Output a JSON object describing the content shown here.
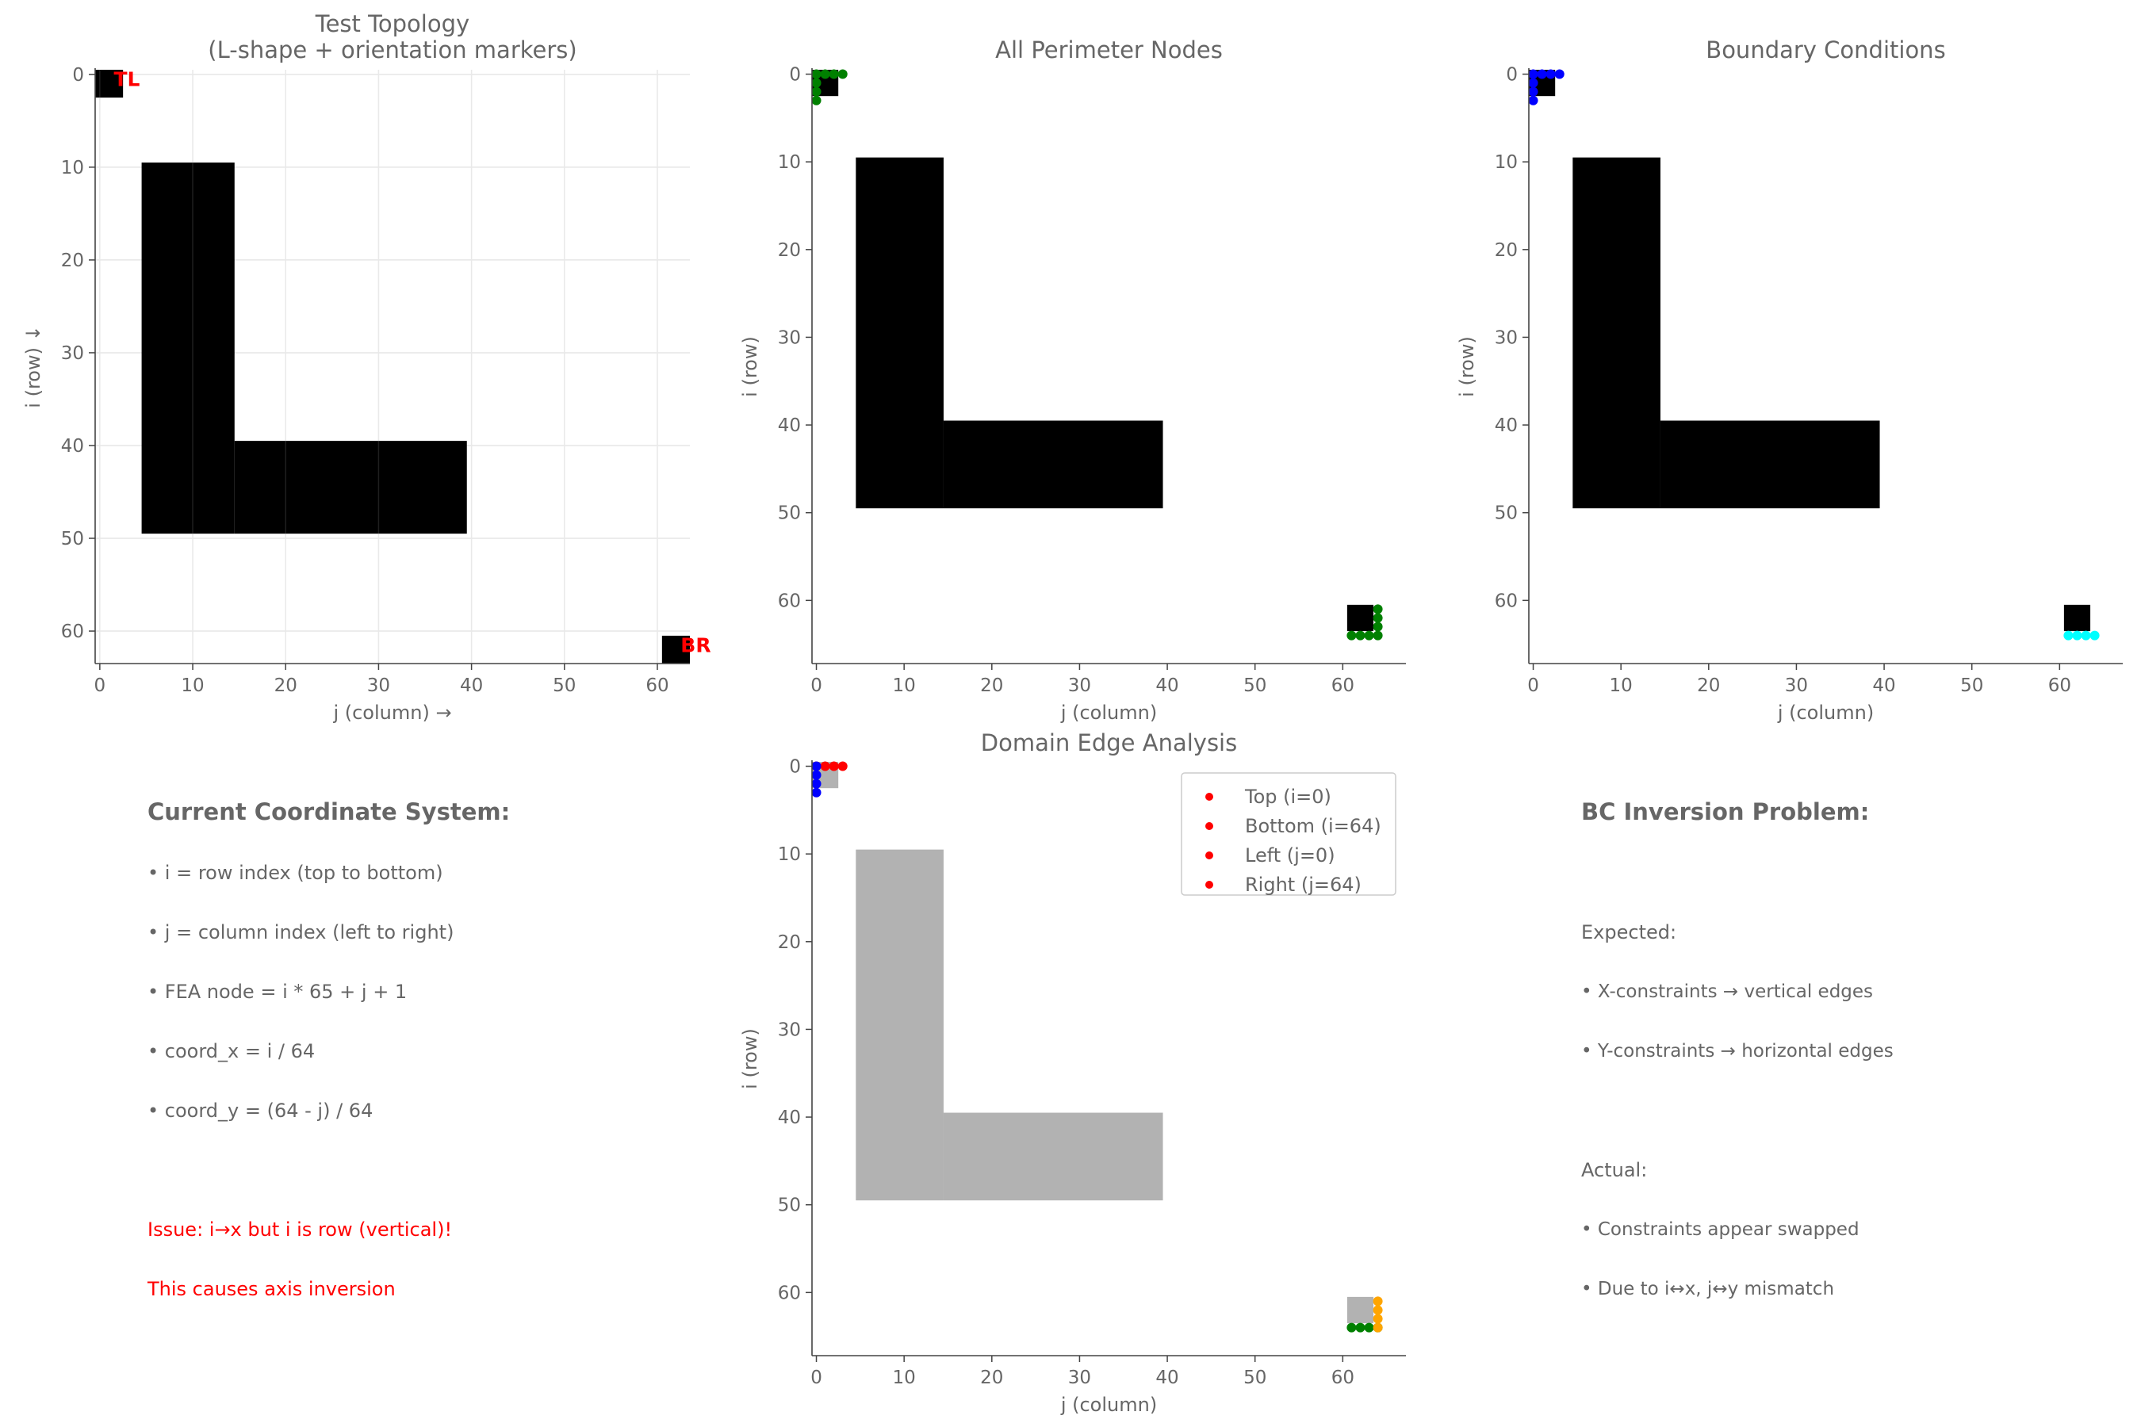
{
  "chart_data": [
    {
      "id": "topology",
      "type": "heatmap",
      "title": "Test Topology\n(L-shape + orientation markers)",
      "xlabel": "j (column) →",
      "ylabel": "i (row) ↓",
      "xticks": [
        0,
        10,
        20,
        30,
        40,
        50,
        60
      ],
      "yticks": [
        0,
        10,
        20,
        30,
        40,
        50,
        60
      ],
      "xlim": [
        -0.5,
        63.5
      ],
      "ylim": [
        63.5,
        -0.5
      ],
      "grid": true,
      "filled_regions": [
        {
          "rows": [
            10,
            49
          ],
          "cols": [
            5,
            14
          ]
        },
        {
          "rows": [
            40,
            49
          ],
          "cols": [
            15,
            39
          ]
        },
        {
          "rows": [
            0,
            2
          ],
          "cols": [
            0,
            2
          ]
        },
        {
          "rows": [
            61,
            63
          ],
          "cols": [
            61,
            63
          ]
        }
      ],
      "annotations": [
        {
          "text": "TL",
          "i": 0.5,
          "j": 1.5,
          "color": "#ff0000"
        },
        {
          "text": "BR",
          "i": 61.5,
          "j": 62.5,
          "color": "#ff0000"
        }
      ]
    },
    {
      "id": "perimeter",
      "type": "scatter",
      "title": "All Perimeter Nodes",
      "xlabel": "j (column)",
      "ylabel": "i (row)",
      "xticks": [
        0,
        10,
        20,
        30,
        40,
        50,
        60
      ],
      "yticks": [
        0,
        10,
        20,
        30,
        40,
        50,
        60
      ],
      "xlim": [
        -0.5,
        67.2
      ],
      "ylim": [
        67.2,
        -0.5
      ],
      "grid": false,
      "filled_regions": [
        {
          "rows": [
            10,
            49
          ],
          "cols": [
            5,
            14
          ]
        },
        {
          "rows": [
            40,
            49
          ],
          "cols": [
            15,
            39
          ]
        },
        {
          "rows": [
            0,
            2
          ],
          "cols": [
            0,
            2
          ]
        },
        {
          "rows": [
            61,
            63
          ],
          "cols": [
            61,
            63
          ]
        }
      ],
      "series": [
        {
          "color": "#008000",
          "points": [
            [
              0,
              0
            ],
            [
              0,
              1
            ],
            [
              0,
              2
            ],
            [
              0,
              3
            ],
            [
              1,
              0
            ],
            [
              2,
              0
            ],
            [
              3,
              0
            ],
            [
              61,
              64
            ],
            [
              62,
              64
            ],
            [
              63,
              64
            ],
            [
              64,
              64
            ],
            [
              64,
              61
            ],
            [
              64,
              62
            ],
            [
              64,
              63
            ]
          ]
        }
      ]
    },
    {
      "id": "bc",
      "type": "scatter",
      "title": "Boundary Conditions",
      "xlabel": "j (column)",
      "ylabel": "i (row)",
      "xticks": [
        0,
        10,
        20,
        30,
        40,
        50,
        60
      ],
      "yticks": [
        0,
        10,
        20,
        30,
        40,
        50,
        60
      ],
      "xlim": [
        -0.5,
        67.2
      ],
      "ylim": [
        67.2,
        -0.5
      ],
      "grid": false,
      "filled_regions": [
        {
          "rows": [
            10,
            49
          ],
          "cols": [
            5,
            14
          ]
        },
        {
          "rows": [
            40,
            49
          ],
          "cols": [
            15,
            39
          ]
        },
        {
          "rows": [
            0,
            2
          ],
          "cols": [
            0,
            2
          ]
        },
        {
          "rows": [
            61,
            63
          ],
          "cols": [
            61,
            63
          ]
        }
      ],
      "series": [
        {
          "color": "#0000ff",
          "points": [
            [
              0,
              0
            ],
            [
              0,
              1
            ],
            [
              0,
              2
            ],
            [
              0,
              3
            ],
            [
              1,
              0
            ],
            [
              2,
              0
            ],
            [
              3,
              0
            ]
          ]
        },
        {
          "color": "#00ffff",
          "points": [
            [
              64,
              61
            ],
            [
              64,
              62
            ],
            [
              64,
              63
            ],
            [
              64,
              64
            ]
          ]
        }
      ]
    },
    {
      "id": "edges",
      "type": "scatter",
      "title": "Domain Edge Analysis",
      "xlabel": "j (column)",
      "ylabel": "i (row)",
      "xticks": [
        0,
        10,
        20,
        30,
        40,
        50,
        60
      ],
      "yticks": [
        0,
        10,
        20,
        30,
        40,
        50,
        60
      ],
      "xlim": [
        -0.5,
        67.2
      ],
      "ylim": [
        67.2,
        -0.5
      ],
      "grid": false,
      "region_color": "#b2b2b2",
      "filled_regions": [
        {
          "rows": [
            10,
            49
          ],
          "cols": [
            5,
            14
          ]
        },
        {
          "rows": [
            40,
            49
          ],
          "cols": [
            15,
            39
          ]
        },
        {
          "rows": [
            0,
            2
          ],
          "cols": [
            0,
            2
          ]
        },
        {
          "rows": [
            61,
            63
          ],
          "cols": [
            61,
            63
          ]
        }
      ],
      "series": [
        {
          "name": "Top (i=0)",
          "color": "#ff0000",
          "points": [
            [
              0,
              0
            ],
            [
              0,
              1
            ],
            [
              0,
              2
            ],
            [
              0,
              3
            ]
          ]
        },
        {
          "name": "Bottom (i=64)",
          "color": "#008000",
          "points": [
            [
              64,
              61
            ],
            [
              64,
              62
            ],
            [
              64,
              63
            ],
            [
              64,
              64
            ]
          ]
        },
        {
          "name": "Left (j=0)",
          "color": "#0000ff",
          "points": [
            [
              0,
              0
            ],
            [
              1,
              0
            ],
            [
              2,
              0
            ],
            [
              3,
              0
            ]
          ]
        },
        {
          "name": "Right (j=64)",
          "color": "#ffa500",
          "points": [
            [
              61,
              64
            ],
            [
              62,
              64
            ],
            [
              63,
              64
            ],
            [
              64,
              64
            ]
          ]
        }
      ],
      "legend": {
        "placement": "top-right",
        "marker_color": "#ff0000"
      }
    }
  ],
  "coord_panel": {
    "heading": "Current Coordinate System:",
    "lines": [
      "• i = row index (top to bottom)",
      "• j = column index (left to right)",
      "• FEA node = i * 65 + j + 1",
      "• coord_x = i / 64",
      "• coord_y = (64 - j) / 64"
    ],
    "issue_lines": [
      "Issue: i→x but i is row (vertical)!",
      "This causes axis inversion"
    ]
  },
  "bc_panel": {
    "heading": "BC Inversion Problem:",
    "expected_label": "Expected:",
    "expected_lines": [
      "• X-constraints → vertical edges",
      "• Y-constraints → horizontal edges"
    ],
    "actual_label": "Actual:",
    "actual_lines": [
      "• Constraints appear swapped",
      "• Due to i↔x, j↔y mismatch"
    ]
  },
  "colors": {
    "fill": "#000000",
    "text": "#666666",
    "issue": "#ff0000",
    "grid": "#e6e6e6"
  }
}
